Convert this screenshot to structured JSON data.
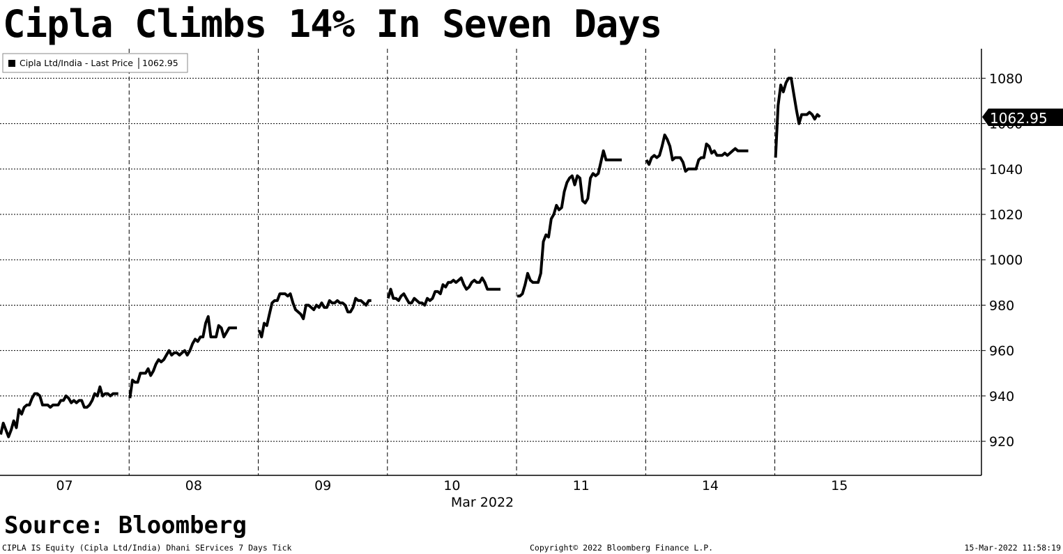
{
  "title": "Cipla Climbs 14% In Seven Days",
  "source": "Source: Bloomberg",
  "footer": {
    "left": "CIPLA IS Equity (Cipla Ltd/India) Dhani SErvices 7 Days  Tick",
    "center": "Copyright© 2022 Bloomberg Finance L.P.",
    "right": "15-Mar-2022 11:58:19"
  },
  "chart_data": {
    "type": "line",
    "title": "Cipla Climbs 14% In Seven Days",
    "xlabel": "Mar 2022",
    "ylabel": "",
    "ylim": [
      905,
      1093
    ],
    "yticks": [
      920,
      940,
      960,
      980,
      1000,
      1020,
      1040,
      1060,
      1080
    ],
    "xticks": [
      "07",
      "08",
      "09",
      "10",
      "11",
      "14",
      "15"
    ],
    "grid": true,
    "legend_position": "top-left",
    "series": [
      {
        "name": "Cipla Ltd/India - Last Price",
        "legend_value": "1062.95",
        "last_value_label": "1062.95",
        "color": "#000000",
        "sessions": [
          {
            "day": "07",
            "values": [
              923,
              928,
              925,
              922,
              925,
              929,
              926,
              934,
              932,
              935,
              936,
              936,
              939,
              941,
              941,
              940,
              936,
              936,
              936,
              935,
              936,
              936,
              936,
              938,
              938,
              940,
              939,
              937,
              938,
              937,
              938,
              938,
              935,
              935,
              936,
              938,
              941,
              940,
              944,
              940,
              941,
              941,
              940,
              941,
              941,
              941
            ]
          },
          {
            "day": "08",
            "values": [
              939,
              947,
              946,
              946,
              950,
              950,
              950,
              952,
              949,
              951,
              954,
              956,
              955,
              956,
              958,
              960,
              958,
              959,
              959,
              958,
              959,
              960,
              958,
              960,
              963,
              965,
              964,
              966,
              966,
              972,
              975,
              966,
              966,
              966,
              971,
              970,
              966,
              968,
              970,
              970,
              970,
              970
            ]
          },
          {
            "day": "09",
            "values": [
              969,
              966,
              972,
              971,
              976,
              981,
              982,
              982,
              985,
              985,
              985,
              984,
              985,
              981,
              978,
              977,
              976,
              974,
              980,
              980,
              979,
              978,
              980,
              979,
              981,
              979,
              979,
              982,
              981,
              981,
              982,
              981,
              981,
              980,
              977,
              977,
              979,
              983,
              982,
              982,
              981,
              980,
              982,
              982
            ]
          },
          {
            "day": "10",
            "values": [
              983,
              987,
              983,
              983,
              982,
              984,
              985,
              983,
              981,
              981,
              983,
              982,
              981,
              981,
              980,
              983,
              982,
              983,
              986,
              986,
              985,
              989,
              988,
              990,
              990,
              991,
              990,
              991,
              992,
              989,
              987,
              988,
              990,
              991,
              990,
              990,
              992,
              990,
              987,
              987,
              987,
              987,
              987,
              987
            ]
          },
          {
            "day": "11",
            "values": [
              984,
              984,
              985,
              989,
              994,
              991,
              990,
              990,
              990,
              994,
              1008,
              1011,
              1010,
              1018,
              1020,
              1024,
              1022,
              1023,
              1030,
              1034,
              1036,
              1037,
              1033,
              1037,
              1036,
              1026,
              1025,
              1027,
              1036,
              1038,
              1037,
              1038,
              1043,
              1048,
              1044,
              1044,
              1044,
              1044,
              1044,
              1044,
              1044
            ]
          },
          {
            "day": "14",
            "values": [
              1044,
              1042,
              1045,
              1046,
              1045,
              1046,
              1050,
              1055,
              1053,
              1050,
              1044,
              1045,
              1045,
              1045,
              1043,
              1039,
              1040,
              1040,
              1040,
              1040,
              1044,
              1045,
              1045,
              1051,
              1050,
              1047,
              1048,
              1046,
              1046,
              1046,
              1047,
              1046,
              1047,
              1048,
              1049,
              1048,
              1048,
              1048,
              1048,
              1048
            ]
          },
          {
            "day": "15",
            "values": [
              1045,
              1068,
              1077,
              1074,
              1078,
              1080,
              1080,
              1073,
              1066,
              1060,
              1064,
              1064,
              1064,
              1065,
              1064,
              1062,
              1064,
              1062.95
            ]
          }
        ]
      }
    ]
  }
}
